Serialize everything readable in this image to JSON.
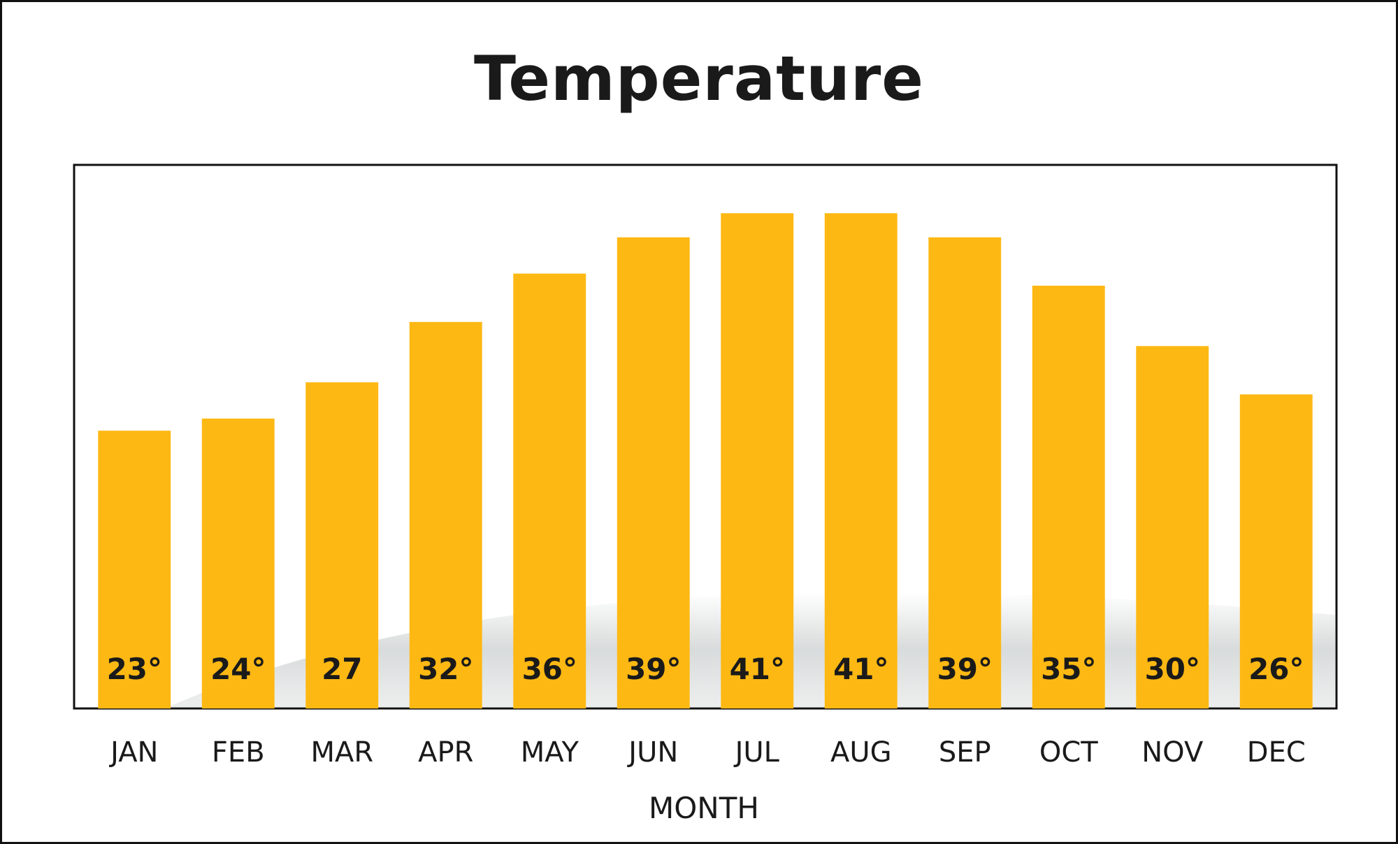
{
  "chart_data": {
    "type": "bar",
    "title": "Temperature",
    "xlabel": "MONTH",
    "ylabel": "",
    "categories": [
      "JAN",
      "FEB",
      "MAR",
      "APR",
      "MAY",
      "JUN",
      "JUL",
      "AUG",
      "SEP",
      "OCT",
      "NOV",
      "DEC"
    ],
    "values": [
      23,
      24,
      27,
      32,
      36,
      39,
      41,
      41,
      39,
      35,
      30,
      26
    ],
    "data_labels": [
      "23°",
      "24°",
      "27",
      "32°",
      "36°",
      "39°",
      "41°",
      "41°",
      "39°",
      "35°",
      "30°",
      "26°"
    ],
    "ylim": [
      0,
      45
    ],
    "grid": false,
    "legend": "none",
    "y_axis_visible": false,
    "colors": {
      "bar": "#FDB813",
      "frame": "#111111",
      "label_text": "#1a1a1a"
    }
  }
}
